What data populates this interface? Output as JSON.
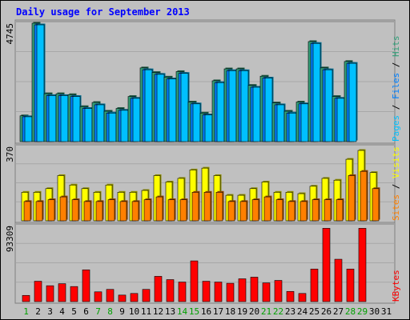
{
  "chart_data": {
    "type": "bar",
    "title": "Daily usage for September 2013",
    "categories": [
      "1",
      "2",
      "3",
      "4",
      "5",
      "6",
      "7",
      "8",
      "9",
      "10",
      "11",
      "12",
      "13",
      "14",
      "15",
      "16",
      "17",
      "18",
      "19",
      "20",
      "21",
      "22",
      "23",
      "24",
      "25",
      "26",
      "27",
      "28",
      "29",
      "30",
      "31"
    ],
    "weekend_days": [
      "1",
      "7",
      "8",
      "14",
      "15",
      "21",
      "22",
      "28",
      "29"
    ],
    "colors": {
      "background": "#c0c0c0",
      "title": "#0000ff",
      "hits": "#33a07a",
      "files": "#0080ff",
      "pages": "#00c0ff",
      "visits": "#ffff00",
      "sites": "#ff8000",
      "kbytes": "#ff0000",
      "weekday_label": "#000000",
      "weekend_label": "#00a000"
    },
    "panels": [
      {
        "ymax_label": "4745",
        "ymax": 4745,
        "legend": [
          {
            "text": "Hits",
            "color": "#33a07a"
          },
          {
            "text": "Files",
            "color": "#0080ff"
          },
          {
            "text": "Pages",
            "color": "#00c0ff"
          }
        ],
        "series": [
          {
            "name": "Hits",
            "values": [
              1034,
              4745,
              1920,
              1920,
              1883,
              1403,
              1569,
              1218,
              1329,
              1809,
              2954,
              2770,
              2586,
              2807,
              1587,
              1144,
              2438,
              2916,
              2916,
              2253,
              2622,
              1551,
              1218,
              1587,
              4009,
              2954,
              1809,
              3211,
              0,
              0,
              0
            ]
          },
          {
            "name": "Files",
            "values": [
              996,
              4680,
              1845,
              1845,
              1808,
              1329,
              1476,
              1144,
              1255,
              1735,
              2880,
              2696,
              2511,
              2734,
              1513,
              1070,
              2364,
              2843,
              2843,
              2180,
              2548,
              1476,
              1144,
              1513,
              3935,
              2880,
              1735,
              3138,
              0,
              0,
              0
            ]
          },
          {
            "name": "Pages",
            "values": [
              996,
              4680,
              1845,
              1845,
              1808,
              1329,
              1476,
              1144,
              1255,
              1735,
              2880,
              2696,
              2511,
              2734,
              1513,
              1070,
              2364,
              2843,
              2843,
              2180,
              2548,
              1476,
              1144,
              1513,
              3935,
              2880,
              1735,
              3138,
              0,
              0,
              0
            ]
          }
        ]
      },
      {
        "ymax_label": "370",
        "ymax": 370,
        "legend": [
          {
            "text": "Visits",
            "color": "#ffff00"
          },
          {
            "text": "Sites",
            "color": "#ff8000"
          }
        ],
        "series": [
          {
            "name": "Visits",
            "values": [
              142,
              142,
              160,
              225,
              178,
              160,
              142,
              178,
              142,
              142,
              151,
              225,
              193,
              211,
              253,
              262,
              225,
              127,
              127,
              160,
              193,
              142,
              142,
              135,
              172,
              211,
              202,
              306,
              350,
              240,
              0
            ]
          },
          {
            "name": "Sites",
            "values": [
              96,
              96,
              105,
              119,
              105,
              96,
              96,
              105,
              96,
              96,
              105,
              119,
              105,
              105,
              142,
              142,
              142,
              96,
              96,
              105,
              119,
              105,
              96,
              96,
              105,
              105,
              105,
              225,
              246,
              160,
              0
            ]
          }
        ]
      },
      {
        "ymax_label": "93309",
        "ymax": 93309,
        "legend": [
          {
            "text": "KBytes",
            "color": "#ff0000"
          }
        ],
        "series": [
          {
            "name": "KBytes",
            "values": [
              7600,
              25000,
              19500,
              22000,
              18500,
              39000,
              12000,
              15000,
              8000,
              10000,
              15000,
              31000,
              27000,
              24000,
              50000,
              25000,
              24000,
              22500,
              28000,
              30000,
              23000,
              26000,
              12500,
              10000,
              40000,
              90000,
              52000,
              40000,
              90000,
              0,
              0
            ]
          }
        ]
      }
    ]
  }
}
